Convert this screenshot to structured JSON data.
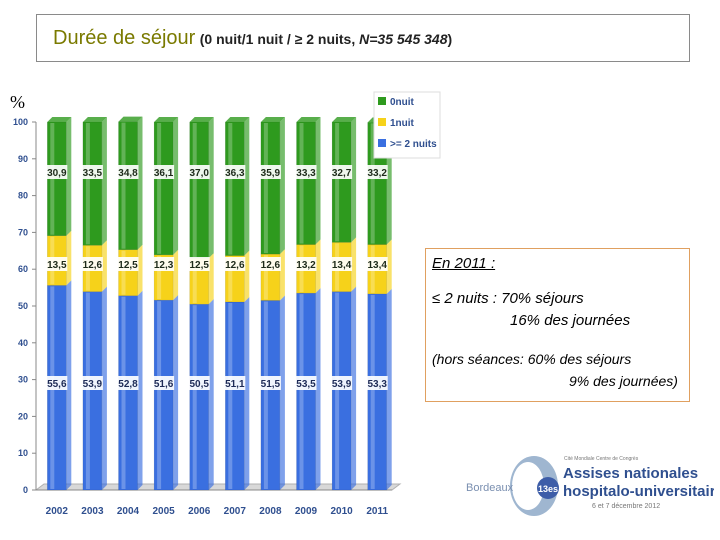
{
  "header": {
    "title_main": "Durée de séjour",
    "title_open": "(0 nuit/1 nuit / ≥  2 nuits, ",
    "title_n": "N=35 545 348",
    "title_close": ")"
  },
  "axis_unit": "%",
  "colors": {
    "nuit0": "#2e9a1e",
    "nuit1": "#f6d21a",
    "nuits2": "#3a6fe0"
  },
  "chart_data": {
    "type": "bar",
    "stacked": true,
    "title": "Durée de séjour (0 nuit/1 nuit / ≥ 2 nuits, N=35 545 348)",
    "xlabel": "",
    "ylabel": "%",
    "ylim": [
      0,
      100
    ],
    "yticks": [
      0,
      10,
      20,
      30,
      40,
      50,
      60,
      70,
      80,
      90,
      100
    ],
    "grid": false,
    "legend_position": "top-right",
    "categories": [
      "2002",
      "2003",
      "2004",
      "2005",
      "2006",
      "2007",
      "2008",
      "2009",
      "2010",
      "2011"
    ],
    "series": [
      {
        "name": ">= 2 nuits",
        "key": "nuits2",
        "values": [
          55.6,
          53.9,
          52.8,
          51.6,
          50.5,
          51.1,
          51.5,
          53.5,
          53.9,
          53.3
        ],
        "labels": [
          "55,6",
          "53,9",
          "52,8",
          "51,6",
          "50,5",
          "51,1",
          "51,5",
          "53,5",
          "53,9",
          "53,3"
        ]
      },
      {
        "name": "1nuit",
        "key": "nuit1",
        "values": [
          13.5,
          12.6,
          12.5,
          12.3,
          12.5,
          12.6,
          12.6,
          13.2,
          13.4,
          13.4
        ],
        "labels": [
          "13,5",
          "12,6",
          "12,5",
          "12,3",
          "12,5",
          "12,6",
          "12,6",
          "13,2",
          "13,4",
          "13,4"
        ]
      },
      {
        "name": "0nuit",
        "key": "nuit0",
        "values": [
          30.9,
          33.5,
          34.8,
          36.1,
          37.0,
          36.3,
          35.9,
          33.3,
          32.7,
          33.2
        ],
        "labels": [
          "30,9",
          "33,5",
          "34,8",
          "36,1",
          "37,0",
          "36,3",
          "35,9",
          "33,3",
          "32,7",
          "33,2"
        ]
      }
    ],
    "legend": [
      "0nuit",
      "1nuit",
      ">= 2 nuits"
    ]
  },
  "note": {
    "line1": "En 2011 :",
    "line2": "≤ 2 nuits : 70% séjours",
    "line3": "16% des journées",
    "line4": "(hors séances: 60% des séjours",
    "line5": "9% des journées)"
  },
  "logo": {
    "city": "Bordeaux",
    "edition": "13es",
    "org": "Cité Mondiale Centre de Congrès",
    "line1": "Assises nationales",
    "line2": "hospitalo-universitaires",
    "dates": "6 et 7 décembre 2012"
  }
}
